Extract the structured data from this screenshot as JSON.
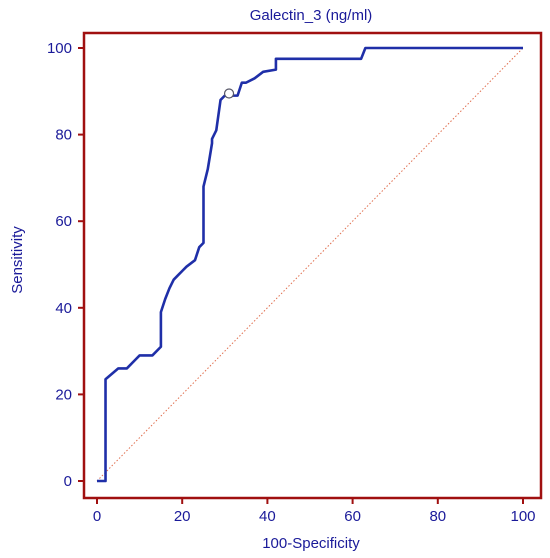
{
  "chart_data": {
    "type": "line",
    "title": "Galectin_3 (ng/ml)",
    "xlabel": "100-Specificity",
    "ylabel": "Sensitivity",
    "xlim": [
      0,
      100
    ],
    "ylim": [
      0,
      100
    ],
    "xticks": [
      "0",
      "20",
      "40",
      "60",
      "80",
      "100"
    ],
    "yticks": [
      "0",
      "20",
      "40",
      "60",
      "80",
      "100"
    ],
    "grid": false,
    "colors": {
      "frame": "#a01010",
      "roc": "#1f2fa8",
      "reference": "#e07050",
      "text": "#1a1a99"
    },
    "series": [
      {
        "x": [
          0,
          2,
          2,
          5,
          7,
          9,
          10,
          13,
          15,
          15,
          16,
          17,
          18,
          19,
          20,
          21,
          23,
          24,
          25,
          25,
          26,
          27,
          27,
          28,
          29,
          30,
          31,
          32,
          33,
          34,
          35,
          37,
          39,
          42,
          42,
          44,
          48,
          53,
          58,
          62,
          63,
          65,
          70,
          80,
          90,
          100
        ],
        "y": [
          0,
          0,
          23.5,
          26,
          26,
          28,
          29,
          29,
          31,
          39,
          42,
          44.5,
          46.5,
          47.5,
          48.5,
          49.5,
          51,
          54,
          55,
          68,
          72,
          78,
          79,
          81,
          88,
          89,
          89,
          89,
          89,
          92,
          92,
          93,
          94.5,
          95,
          97.5,
          97.5,
          97.5,
          97.5,
          97.5,
          97.5,
          100,
          100,
          100,
          100,
          100,
          100
        ]
      },
      {
        "x": [
          0,
          100
        ],
        "y": [
          0,
          100
        ]
      }
    ],
    "marker": {
      "x": 31,
      "y": 89.5
    }
  }
}
